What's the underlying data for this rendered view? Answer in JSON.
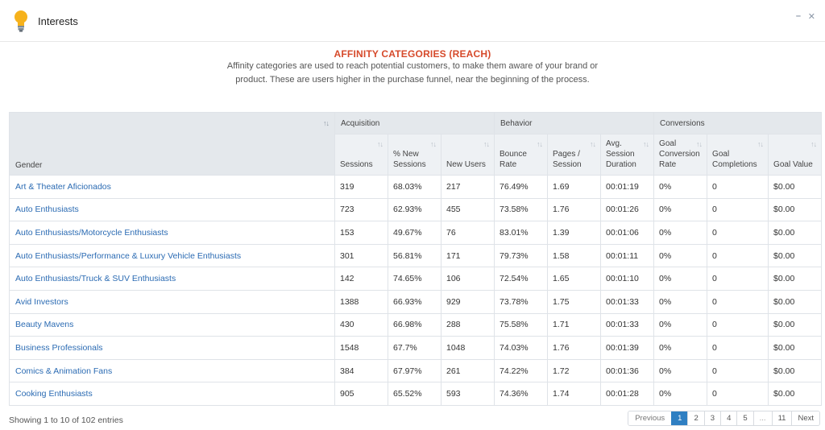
{
  "panel": {
    "title": "Interests"
  },
  "info": {
    "title": "AFFINITY CATEGORIES (REACH)",
    "description": "Affinity categories are used to reach potential customers, to make them aware of your brand or product. These are users higher in the purchase funnel, near the beginning of the process."
  },
  "table": {
    "groups": {
      "acquisition": "Acquisition",
      "behavior": "Behavior",
      "conversions": "Conversions"
    },
    "gender_header": "Gender",
    "columns": {
      "sessions": "Sessions",
      "new_sessions": "% New Sessions",
      "new_users": "New Users",
      "bounce_rate": "Bounce Rate",
      "pages_session": "Pages / Session",
      "avg_duration": "Avg. Session Duration",
      "goal_conv_rate": "Goal Conversion Rate",
      "goal_completions": "Goal Completions",
      "goal_value": "Goal Value"
    },
    "rows": [
      [
        "Art & Theater Aficionados",
        "319",
        "68.03%",
        "217",
        "76.49%",
        "1.69",
        "00:01:19",
        "0%",
        "0",
        "$0.00"
      ],
      [
        "Auto Enthusiasts",
        "723",
        "62.93%",
        "455",
        "73.58%",
        "1.76",
        "00:01:26",
        "0%",
        "0",
        "$0.00"
      ],
      [
        "Auto Enthusiasts/Motorcycle Enthusiasts",
        "153",
        "49.67%",
        "76",
        "83.01%",
        "1.39",
        "00:01:06",
        "0%",
        "0",
        "$0.00"
      ],
      [
        "Auto Enthusiasts/Performance & Luxury Vehicle Enthusiasts",
        "301",
        "56.81%",
        "171",
        "79.73%",
        "1.58",
        "00:01:11",
        "0%",
        "0",
        "$0.00"
      ],
      [
        "Auto Enthusiasts/Truck & SUV Enthusiasts",
        "142",
        "74.65%",
        "106",
        "72.54%",
        "1.65",
        "00:01:10",
        "0%",
        "0",
        "$0.00"
      ],
      [
        "Avid Investors",
        "1388",
        "66.93%",
        "929",
        "73.78%",
        "1.75",
        "00:01:33",
        "0%",
        "0",
        "$0.00"
      ],
      [
        "Beauty Mavens",
        "430",
        "66.98%",
        "288",
        "75.58%",
        "1.71",
        "00:01:33",
        "0%",
        "0",
        "$0.00"
      ],
      [
        "Business Professionals",
        "1548",
        "67.7%",
        "1048",
        "74.03%",
        "1.76",
        "00:01:39",
        "0%",
        "0",
        "$0.00"
      ],
      [
        "Comics & Animation Fans",
        "384",
        "67.97%",
        "261",
        "74.22%",
        "1.72",
        "00:01:36",
        "0%",
        "0",
        "$0.00"
      ],
      [
        "Cooking Enthusiasts",
        "905",
        "65.52%",
        "593",
        "74.36%",
        "1.74",
        "00:01:28",
        "0%",
        "0",
        "$0.00"
      ]
    ]
  },
  "footer": {
    "info": "Showing 1 to 10 of 102 entries",
    "pager": [
      "Previous",
      "1",
      "2",
      "3",
      "4",
      "5",
      "...",
      "11",
      "Next"
    ],
    "active_page": "1"
  },
  "colors": {
    "accent": "#2f7fc2",
    "title_red": "#d64a2b",
    "link": "#2b6bb3"
  },
  "icons": {
    "header": "lightbulb-icon",
    "minimize": "minimize-icon",
    "close": "close-icon",
    "sort": "sort-icon"
  }
}
